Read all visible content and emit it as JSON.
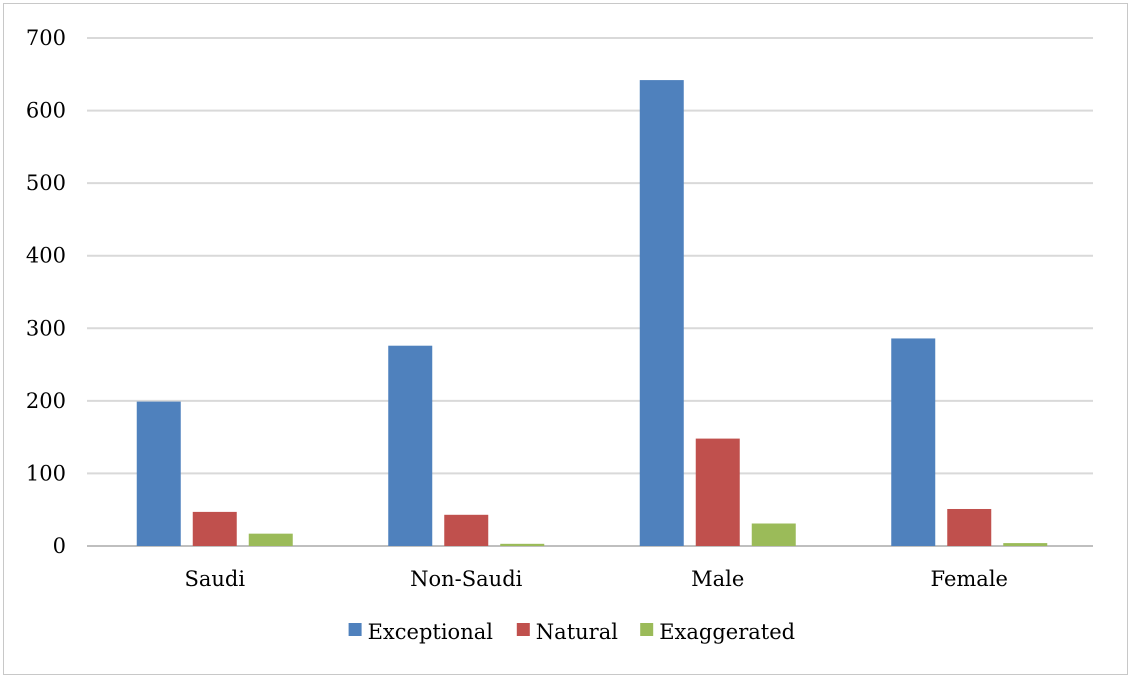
{
  "chart_data": {
    "type": "bar",
    "categories": [
      "Saudi",
      "Non-Saudi",
      "Male",
      "Female"
    ],
    "series": [
      {
        "name": "Exceptional",
        "color": "#4f81bd",
        "values": [
          199,
          276,
          642,
          286
        ]
      },
      {
        "name": "Natural",
        "color": "#c0504d",
        "values": [
          47,
          43,
          148,
          51
        ]
      },
      {
        "name": "Exaggerated",
        "color": "#9bbb59",
        "values": [
          17,
          3,
          31,
          4
        ]
      }
    ],
    "ylim": [
      0,
      700
    ],
    "yticks": [
      0,
      100,
      200,
      300,
      400,
      500,
      600,
      700
    ],
    "grid": true,
    "legend_position": "bottom"
  }
}
